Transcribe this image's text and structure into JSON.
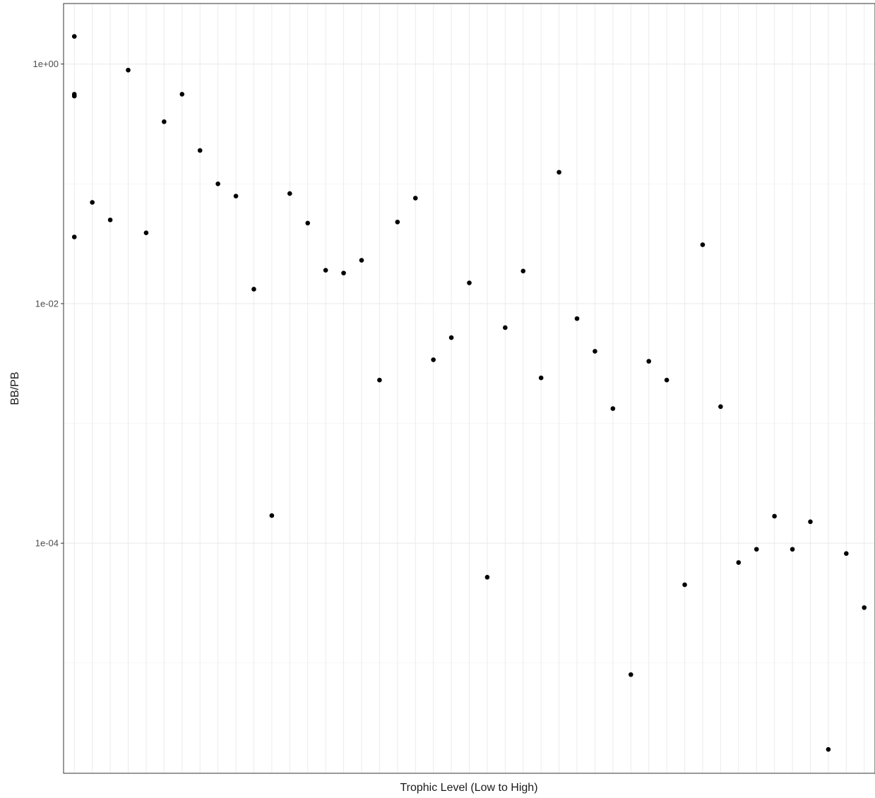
{
  "chart_data": {
    "type": "scatter",
    "title": "",
    "xlabel": "Trophic Level (Low to High)",
    "ylabel": "BB/PB",
    "y_scale": "log10",
    "ylim": [
      1.2e-06,
      3.2
    ],
    "xlim": [
      0.4,
      45.6
    ],
    "x_ticks_labeled": false,
    "y_tick_labels": [
      "1e+00",
      "1e-02",
      "1e-04"
    ],
    "y_tick_values": [
      1,
      0.01,
      0.0001
    ],
    "grid": true,
    "legend": "none",
    "point_color": "#000000",
    "points": [
      {
        "x": 1,
        "y": 1.7
      },
      {
        "x": 1,
        "y": 0.56
      },
      {
        "x": 1,
        "y": 0.54
      },
      {
        "x": 1,
        "y": 0.036
      },
      {
        "x": 2,
        "y": 0.07
      },
      {
        "x": 3,
        "y": 0.05
      },
      {
        "x": 4,
        "y": 0.89
      },
      {
        "x": 5,
        "y": 0.039
      },
      {
        "x": 6,
        "y": 0.33
      },
      {
        "x": 7,
        "y": 0.56
      },
      {
        "x": 8,
        "y": 0.19
      },
      {
        "x": 9,
        "y": 0.1
      },
      {
        "x": 10,
        "y": 0.079
      },
      {
        "x": 11,
        "y": 0.0132
      },
      {
        "x": 12,
        "y": 0.00017
      },
      {
        "x": 13,
        "y": 0.083
      },
      {
        "x": 14,
        "y": 0.047
      },
      {
        "x": 15,
        "y": 0.019
      },
      {
        "x": 16,
        "y": 0.018
      },
      {
        "x": 17,
        "y": 0.023
      },
      {
        "x": 18,
        "y": 0.0023
      },
      {
        "x": 19,
        "y": 0.048
      },
      {
        "x": 20,
        "y": 0.076
      },
      {
        "x": 21,
        "y": 0.0034
      },
      {
        "x": 22,
        "y": 0.0052
      },
      {
        "x": 23,
        "y": 0.0149
      },
      {
        "x": 24,
        "y": 5.2e-05
      },
      {
        "x": 25,
        "y": 0.0063
      },
      {
        "x": 26,
        "y": 0.0187
      },
      {
        "x": 27,
        "y": 0.0024
      },
      {
        "x": 28,
        "y": 0.125
      },
      {
        "x": 29,
        "y": 0.0075
      },
      {
        "x": 30,
        "y": 0.004
      },
      {
        "x": 31,
        "y": 0.00133
      },
      {
        "x": 32,
        "y": 8e-06
      },
      {
        "x": 33,
        "y": 0.0033
      },
      {
        "x": 34,
        "y": 0.0023
      },
      {
        "x": 35,
        "y": 4.5e-05
      },
      {
        "x": 36,
        "y": 0.031
      },
      {
        "x": 37,
        "y": 0.00138
      },
      {
        "x": 38,
        "y": 6.9e-05
      },
      {
        "x": 39,
        "y": 8.9e-05
      },
      {
        "x": 40,
        "y": 0.000168
      },
      {
        "x": 41,
        "y": 8.9e-05
      },
      {
        "x": 42,
        "y": 0.000151
      },
      {
        "x": 43,
        "y": 1.9e-06
      },
      {
        "x": 44,
        "y": 8.2e-05
      },
      {
        "x": 45,
        "y": 2.9e-05
      }
    ]
  }
}
